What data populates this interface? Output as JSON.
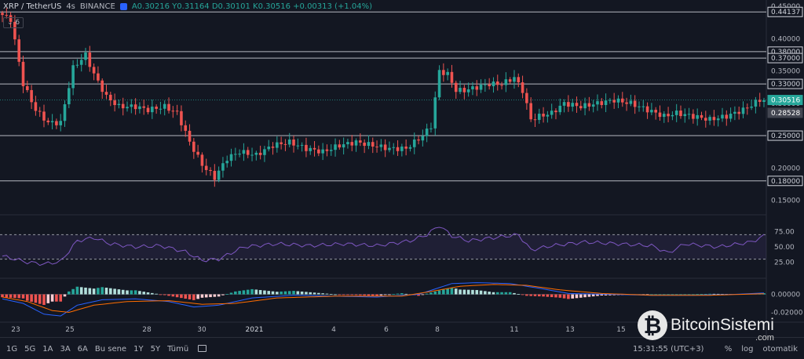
{
  "header": {
    "symbol": "XRP / TetherUS",
    "interval": "4s",
    "exchange": "BINANCE",
    "ohlc": "A0.30216  Y0.31164  D0.30101  K0.30516  +0.00313 (+1.04%)"
  },
  "indicator_badge": "6",
  "chart_data": [
    {
      "type": "candlestick",
      "title": "XRP / TetherUS  4s  BINANCE",
      "ylim": [
        0.13,
        0.455
      ],
      "y_tick_labels": [
        "0.45000",
        "0.40000",
        "0.35000",
        "0.30000",
        "0.25000",
        "0.20000",
        "0.15000"
      ],
      "horizontal_levels": [
        0.44137,
        0.38,
        0.37,
        0.33,
        0.25,
        0.18
      ],
      "price_labels": [
        {
          "value": 0.44137,
          "text": "0.44137",
          "style": "level"
        },
        {
          "value": 0.38,
          "text": "0.38000",
          "style": "level"
        },
        {
          "value": 0.37,
          "text": "0.37000",
          "style": "level"
        },
        {
          "value": 0.33,
          "text": "0.33000",
          "style": "level"
        },
        {
          "value": 0.30516,
          "text": "0.30516",
          "style": "last"
        },
        {
          "value": 0.28528,
          "text": "0.28528",
          "style": "gray"
        },
        {
          "value": 0.25,
          "text": "0.25000",
          "style": "level"
        },
        {
          "value": 0.18,
          "text": "0.18000",
          "style": "level"
        }
      ],
      "x_tick_labels": [
        "23",
        "25",
        "28",
        "30",
        "2021",
        "4",
        "6",
        "8",
        "11",
        "13",
        "15"
      ],
      "keypoints": [
        [
          0,
          0.44
        ],
        [
          3,
          0.43
        ],
        [
          6,
          0.33
        ],
        [
          9,
          0.29
        ],
        [
          12,
          0.27
        ],
        [
          15,
          0.27
        ],
        [
          18,
          0.355
        ],
        [
          21,
          0.375
        ],
        [
          23,
          0.345
        ],
        [
          26,
          0.31
        ],
        [
          29,
          0.295
        ],
        [
          33,
          0.295
        ],
        [
          36,
          0.29
        ],
        [
          40,
          0.295
        ],
        [
          43,
          0.285
        ],
        [
          46,
          0.24
        ],
        [
          49,
          0.205
        ],
        [
          52,
          0.185
        ],
        [
          55,
          0.215
        ],
        [
          58,
          0.225
        ],
        [
          62,
          0.22
        ],
        [
          66,
          0.235
        ],
        [
          70,
          0.24
        ],
        [
          74,
          0.23
        ],
        [
          78,
          0.225
        ],
        [
          82,
          0.235
        ],
        [
          86,
          0.24
        ],
        [
          90,
          0.235
        ],
        [
          94,
          0.23
        ],
        [
          98,
          0.23
        ],
        [
          102,
          0.25
        ],
        [
          104,
          0.265
        ],
        [
          106,
          0.35
        ],
        [
          108,
          0.345
        ],
        [
          110,
          0.32
        ],
        [
          112,
          0.32
        ],
        [
          115,
          0.325
        ],
        [
          118,
          0.33
        ],
        [
          121,
          0.33
        ],
        [
          124,
          0.34
        ],
        [
          126,
          0.32
        ],
        [
          128,
          0.275
        ],
        [
          130,
          0.28
        ],
        [
          133,
          0.285
        ],
        [
          136,
          0.3
        ],
        [
          140,
          0.295
        ],
        [
          144,
          0.3
        ],
        [
          148,
          0.305
        ],
        [
          152,
          0.3
        ],
        [
          156,
          0.29
        ],
        [
          160,
          0.28
        ],
        [
          163,
          0.285
        ],
        [
          167,
          0.28
        ],
        [
          171,
          0.275
        ],
        [
          175,
          0.28
        ],
        [
          179,
          0.29
        ],
        [
          183,
          0.305
        ]
      ],
      "candle_count": 184
    },
    {
      "type": "line",
      "series_label": "RSI",
      "ylim": [
        0,
        100
      ],
      "y_tick_labels": [
        "75.00",
        "50.00",
        "25.00"
      ],
      "band": [
        30,
        70
      ],
      "keypoints": [
        [
          0,
          35
        ],
        [
          6,
          25
        ],
        [
          10,
          22
        ],
        [
          14,
          26
        ],
        [
          18,
          60
        ],
        [
          22,
          65
        ],
        [
          26,
          55
        ],
        [
          32,
          50
        ],
        [
          38,
          52
        ],
        [
          44,
          42
        ],
        [
          48,
          28
        ],
        [
          52,
          30
        ],
        [
          58,
          50
        ],
        [
          66,
          55
        ],
        [
          74,
          52
        ],
        [
          82,
          55
        ],
        [
          90,
          52
        ],
        [
          98,
          60
        ],
        [
          102,
          70
        ],
        [
          105,
          85
        ],
        [
          108,
          68
        ],
        [
          112,
          60
        ],
        [
          118,
          65
        ],
        [
          124,
          70
        ],
        [
          127,
          45
        ],
        [
          132,
          52
        ],
        [
          140,
          58
        ],
        [
          148,
          55
        ],
        [
          156,
          52
        ],
        [
          160,
          40
        ],
        [
          164,
          55
        ],
        [
          172,
          50
        ],
        [
          180,
          58
        ],
        [
          183,
          68
        ],
        [
          185,
          65
        ]
      ]
    },
    {
      "type": "histogram+line",
      "series_label": "MACD",
      "ylim": [
        -0.03,
        0.017
      ],
      "y_tick_labels": [
        "0.00000",
        "-0.02000"
      ],
      "keypoints_macd": [
        [
          0,
          -0.005
        ],
        [
          5,
          -0.01
        ],
        [
          10,
          -0.022
        ],
        [
          14,
          -0.024
        ],
        [
          18,
          -0.012
        ],
        [
          24,
          -0.006
        ],
        [
          32,
          -0.005
        ],
        [
          40,
          -0.008
        ],
        [
          46,
          -0.014
        ],
        [
          52,
          -0.012
        ],
        [
          60,
          -0.004
        ],
        [
          70,
          -0.001
        ],
        [
          80,
          -0.002
        ],
        [
          90,
          -0.003
        ],
        [
          100,
          0.0
        ],
        [
          104,
          0.006
        ],
        [
          108,
          0.012
        ],
        [
          114,
          0.013
        ],
        [
          122,
          0.012
        ],
        [
          130,
          0.006
        ],
        [
          136,
          0.001
        ],
        [
          146,
          0.0
        ],
        [
          156,
          -0.001
        ],
        [
          166,
          -0.001
        ],
        [
          176,
          0.0
        ],
        [
          185,
          0.002
        ]
      ],
      "keypoints_signal": [
        [
          0,
          -0.003
        ],
        [
          6,
          -0.008
        ],
        [
          12,
          -0.018
        ],
        [
          16,
          -0.02
        ],
        [
          22,
          -0.012
        ],
        [
          30,
          -0.008
        ],
        [
          40,
          -0.007
        ],
        [
          48,
          -0.011
        ],
        [
          56,
          -0.01
        ],
        [
          66,
          -0.004
        ],
        [
          80,
          -0.002
        ],
        [
          96,
          -0.002
        ],
        [
          104,
          0.004
        ],
        [
          110,
          0.009
        ],
        [
          118,
          0.011
        ],
        [
          126,
          0.01
        ],
        [
          134,
          0.005
        ],
        [
          144,
          0.001
        ],
        [
          156,
          -0.001
        ],
        [
          170,
          -0.001
        ],
        [
          185,
          0.001
        ]
      ]
    }
  ],
  "bottom_bar": {
    "timeframes": [
      "1G",
      "5G",
      "1A",
      "3A",
      "6A",
      "Bu sene",
      "1Y",
      "5Y",
      "Tümü"
    ],
    "clock": "15:31:55 (UTC+3)",
    "right_controls": [
      "%",
      "log",
      "otomatik"
    ]
  },
  "watermark": {
    "name": "BitcoinSistemi",
    "sub": ".com",
    "symbol": "₿"
  },
  "colors": {
    "bg": "#131722",
    "up": "#26a69a",
    "down": "#ef5350",
    "rsi": "#7e57c2",
    "macd": "#2962ff",
    "signal": "#ff6d00",
    "level": "#d1d4dc"
  }
}
